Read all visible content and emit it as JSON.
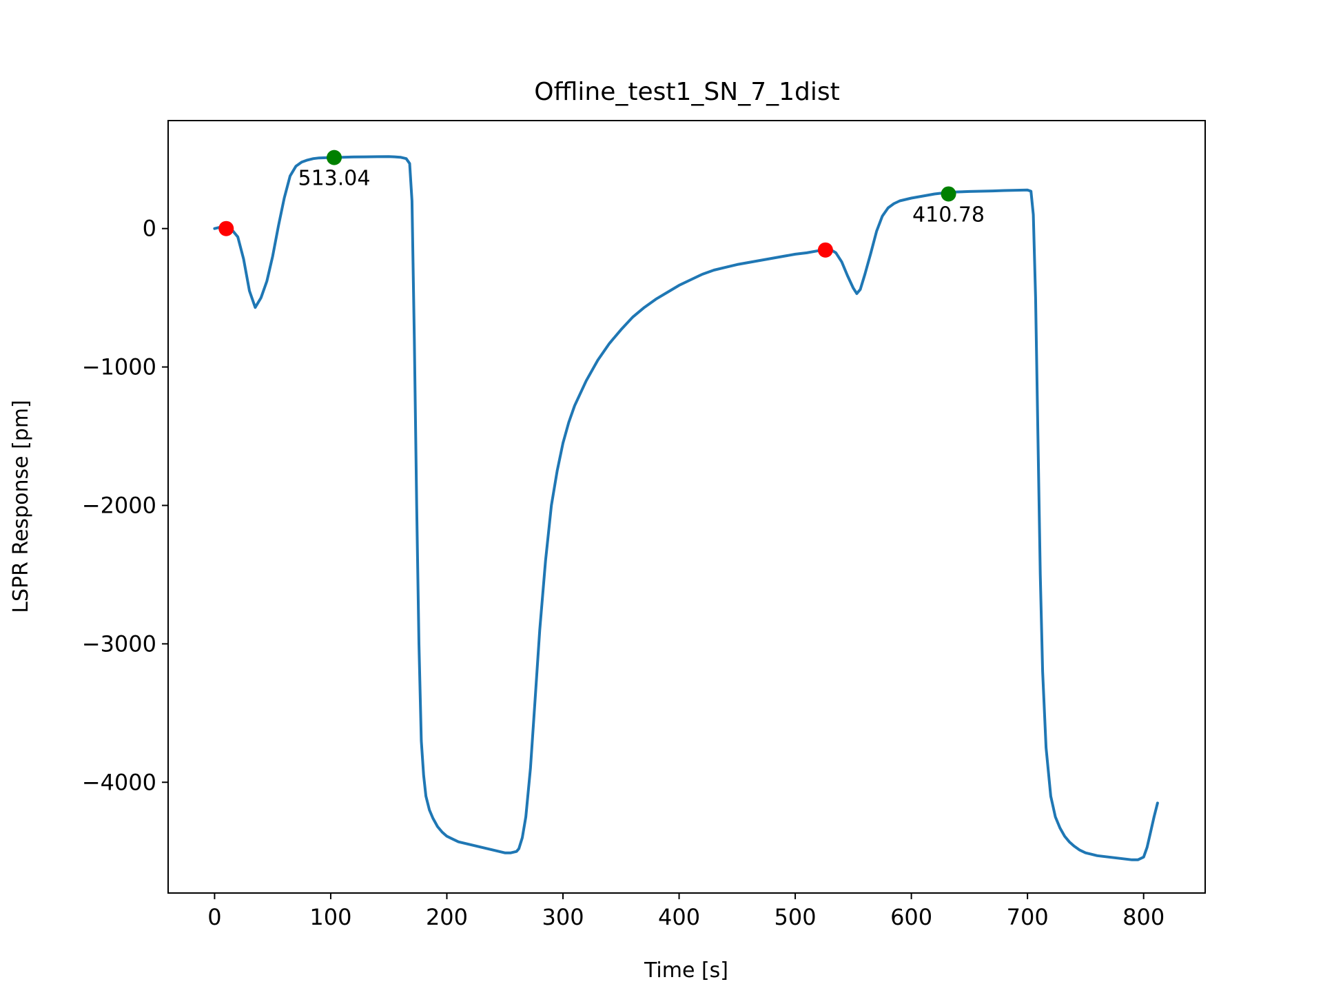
{
  "chart_data": {
    "type": "line",
    "title": "Offline_test1_SN_7_1dist",
    "xlabel": "Time [s]",
    "ylabel": "LSPR Response [pm]",
    "xlim": [
      -40,
      853
    ],
    "ylim": [
      -4800,
      780
    ],
    "xticks": [
      0,
      100,
      200,
      300,
      400,
      500,
      600,
      700,
      800
    ],
    "yticks": [
      0,
      -1000,
      -2000,
      -3000,
      -4000
    ],
    "xtick_labels": [
      "0",
      "100",
      "200",
      "300",
      "400",
      "500",
      "600",
      "700",
      "800"
    ],
    "ytick_labels": [
      "0",
      "−1000",
      "−2000",
      "−3000",
      "−4000"
    ],
    "grid": false,
    "series": [
      {
        "color": "#1f77b4",
        "x": [
          0,
          5,
          10,
          15,
          20,
          25,
          30,
          35,
          40,
          45,
          50,
          55,
          60,
          65,
          70,
          75,
          80,
          85,
          90,
          100,
          110,
          120,
          130,
          140,
          150,
          155,
          160,
          165,
          168,
          170,
          172,
          174,
          176,
          178,
          180,
          182,
          185,
          188,
          192,
          196,
          200,
          205,
          210,
          220,
          230,
          240,
          250,
          255,
          260,
          262,
          265,
          268,
          272,
          276,
          280,
          285,
          290,
          295,
          300,
          305,
          310,
          320,
          330,
          340,
          350,
          360,
          370,
          380,
          390,
          400,
          410,
          420,
          430,
          440,
          450,
          460,
          470,
          480,
          490,
          500,
          510,
          520,
          526,
          530,
          535,
          540,
          545,
          550,
          553,
          556,
          560,
          565,
          570,
          575,
          580,
          585,
          590,
          600,
          610,
          620,
          630,
          640,
          650,
          660,
          670,
          680,
          690,
          700,
          703,
          705,
          707,
          709,
          711,
          713,
          716,
          720,
          724,
          728,
          732,
          736,
          740,
          745,
          750,
          755,
          760,
          770,
          780,
          790,
          795,
          800,
          803,
          806,
          809,
          812
        ],
        "y": [
          0,
          10,
          0,
          -10,
          -60,
          -220,
          -450,
          -570,
          -500,
          -380,
          -200,
          20,
          220,
          380,
          450,
          480,
          495,
          505,
          510,
          513,
          515,
          517,
          518,
          519,
          520,
          518,
          515,
          505,
          470,
          200,
          -800,
          -2000,
          -3000,
          -3700,
          -3950,
          -4100,
          -4200,
          -4260,
          -4320,
          -4360,
          -4390,
          -4410,
          -4430,
          -4450,
          -4470,
          -4490,
          -4510,
          -4510,
          -4500,
          -4480,
          -4400,
          -4250,
          -3900,
          -3400,
          -2900,
          -2400,
          -2000,
          -1750,
          -1550,
          -1400,
          -1280,
          -1100,
          -950,
          -830,
          -730,
          -640,
          -570,
          -510,
          -460,
          -410,
          -370,
          -330,
          -300,
          -280,
          -260,
          -245,
          -230,
          -215,
          -200,
          -185,
          -175,
          -160,
          -150,
          -150,
          -175,
          -240,
          -340,
          -430,
          -470,
          -440,
          -330,
          -180,
          -20,
          90,
          150,
          180,
          200,
          220,
          235,
          250,
          260,
          265,
          268,
          270,
          272,
          275,
          277,
          278,
          270,
          100,
          -500,
          -1500,
          -2500,
          -3200,
          -3750,
          -4100,
          -4250,
          -4330,
          -4390,
          -4430,
          -4460,
          -4490,
          -4510,
          -4520,
          -4530,
          -4540,
          -4550,
          -4560,
          -4560,
          -4540,
          -4470,
          -4360,
          -4250,
          -4150
        ]
      }
    ],
    "markers": [
      {
        "x": 10,
        "y": 0,
        "color": "#ff0000"
      },
      {
        "x": 103,
        "y": 513.04,
        "color": "#008000"
      },
      {
        "x": 526,
        "y": -155,
        "color": "#ff0000"
      },
      {
        "x": 632,
        "y": 250,
        "color": "#008000"
      }
    ],
    "annotations": [
      {
        "text": "513.04",
        "x": 103,
        "y": 513.04
      },
      {
        "text": "410.78",
        "x": 632,
        "y": 250
      }
    ]
  }
}
